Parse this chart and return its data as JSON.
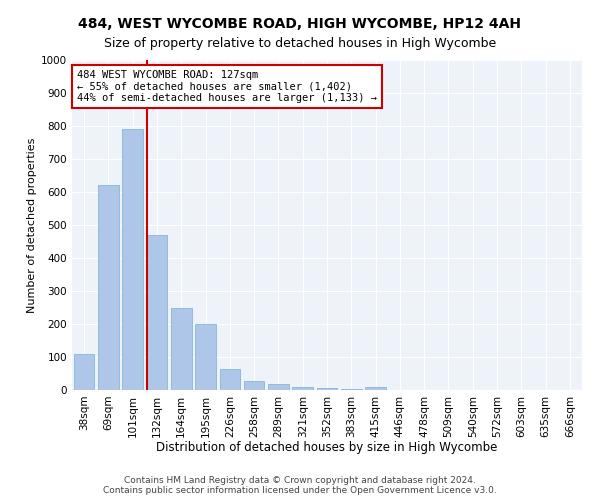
{
  "title1": "484, WEST WYCOMBE ROAD, HIGH WYCOMBE, HP12 4AH",
  "title2": "Size of property relative to detached houses in High Wycombe",
  "xlabel": "Distribution of detached houses by size in High Wycombe",
  "ylabel": "Number of detached properties",
  "categories": [
    "38sqm",
    "69sqm",
    "101sqm",
    "132sqm",
    "164sqm",
    "195sqm",
    "226sqm",
    "258sqm",
    "289sqm",
    "321sqm",
    "352sqm",
    "383sqm",
    "415sqm",
    "446sqm",
    "478sqm",
    "509sqm",
    "540sqm",
    "572sqm",
    "603sqm",
    "635sqm",
    "666sqm"
  ],
  "values": [
    110,
    620,
    790,
    470,
    250,
    200,
    65,
    27,
    18,
    10,
    5,
    2,
    10,
    0,
    0,
    0,
    0,
    0,
    0,
    0,
    0
  ],
  "bar_color": "#aec6e8",
  "bar_edge_color": "#7aafd4",
  "vline_color": "#cc0000",
  "annotation_line1": "484 WEST WYCOMBE ROAD: 127sqm",
  "annotation_line2": "← 55% of detached houses are smaller (1,402)",
  "annotation_line3": "44% of semi-detached houses are larger (1,133) →",
  "annotation_box_color": "#ffffff",
  "annotation_box_edge": "#cc0000",
  "ylim": [
    0,
    1000
  ],
  "yticks": [
    0,
    100,
    200,
    300,
    400,
    500,
    600,
    700,
    800,
    900,
    1000
  ],
  "background_color": "#eef2f9",
  "grid_color": "#ffffff",
  "footer": "Contains HM Land Registry data © Crown copyright and database right 2024.\nContains public sector information licensed under the Open Government Licence v3.0.",
  "title1_fontsize": 10,
  "title2_fontsize": 9,
  "xlabel_fontsize": 8.5,
  "ylabel_fontsize": 8,
  "tick_fontsize": 7.5,
  "footer_fontsize": 6.5,
  "annotation_fontsize": 7.5
}
